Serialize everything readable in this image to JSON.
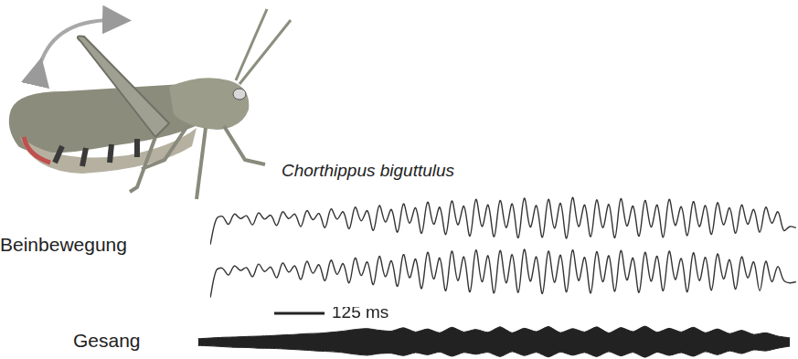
{
  "species_label": "Chorthippus biguttulus",
  "chart_data": [
    {
      "type": "line",
      "ylabel": "Beinbewegung",
      "tick_labels": false,
      "grid": false,
      "xlim": [
        0,
        1460
      ],
      "ylim": [
        0,
        10
      ],
      "y2lim": [
        0,
        10
      ],
      "x": [
        0,
        15,
        30,
        45,
        60,
        75,
        90,
        105,
        120,
        135,
        150,
        165,
        180,
        195,
        210,
        225,
        240,
        255,
        270,
        285,
        300,
        315,
        330,
        345,
        360,
        375,
        390,
        405,
        420,
        435,
        450,
        465,
        480,
        495,
        510,
        525,
        540,
        555,
        570,
        585,
        600,
        615,
        630,
        645,
        660,
        675,
        690,
        705,
        720,
        735,
        750,
        765,
        780,
        795,
        810,
        825,
        840,
        855,
        870,
        885,
        900,
        915,
        930,
        945,
        960,
        975,
        990,
        1005,
        1020,
        1035,
        1050,
        1065,
        1080,
        1095,
        1110,
        1125,
        1140,
        1155,
        1170,
        1185,
        1200,
        1215,
        1230,
        1245,
        1260,
        1275,
        1290,
        1305,
        1320,
        1335,
        1350,
        1365,
        1380,
        1395,
        1410,
        1425,
        1440,
        1455
      ],
      "series": [
        {
          "color": "#333333",
          "values": [
            1,
            5.5,
            6,
            4.6,
            6.4,
            5.6,
            6.1,
            4.5,
            6.6,
            5.5,
            6.2,
            4.4,
            6.8,
            5.6,
            6.4,
            4.2,
            7.0,
            5.4,
            6.5,
            4.0,
            7.3,
            5.5,
            6.8,
            3.8,
            7.6,
            5.2,
            7.0,
            3.5,
            7.9,
            5.0,
            7.2,
            3.2,
            8.2,
            4.8,
            7.5,
            3.0,
            8.5,
            4.6,
            7.6,
            2.8,
            8.7,
            4.5,
            7.8,
            2.5,
            9.0,
            4.2,
            8.0,
            2.4,
            8.8,
            4.0,
            8.2,
            2.2,
            9.2,
            4.1,
            7.9,
            2.3,
            9.0,
            3.9,
            8.3,
            2.1,
            9.3,
            4.2,
            8.0,
            2.4,
            8.9,
            4.0,
            8.1,
            2.2,
            9.1,
            4.3,
            7.8,
            2.5,
            8.8,
            4.1,
            8.0,
            2.3,
            9.0,
            4.4,
            7.7,
            2.6,
            8.6,
            4.2,
            7.9,
            2.8,
            8.4,
            4.5,
            7.5,
            3.0,
            8.0,
            4.6,
            7.2,
            3.2,
            7.6,
            4.8,
            6.8,
            3.5,
            4.2,
            4.0
          ]
        },
        {
          "color": "#333333",
          "axis": "y2",
          "values": [
            1,
            5.8,
            6.2,
            5.0,
            6.6,
            5.8,
            6.3,
            4.7,
            6.9,
            5.6,
            6.4,
            4.5,
            7.1,
            5.5,
            6.6,
            4.2,
            7.4,
            5.3,
            6.8,
            4.0,
            7.6,
            5.1,
            7.0,
            3.6,
            8.0,
            4.9,
            7.3,
            3.3,
            8.3,
            4.7,
            7.5,
            3.0,
            8.6,
            4.5,
            7.8,
            2.6,
            9.0,
            4.3,
            8.0,
            2.2,
            9.2,
            4.0,
            8.2,
            2.0,
            9.4,
            3.8,
            8.4,
            1.8,
            9.3,
            3.6,
            8.6,
            1.9,
            9.5,
            3.9,
            8.2,
            1.7,
            9.2,
            3.7,
            8.5,
            2.0,
            9.4,
            4.0,
            8.1,
            1.8,
            9.1,
            3.8,
            8.4,
            2.1,
            9.3,
            4.1,
            8.0,
            1.9,
            9.0,
            3.9,
            8.3,
            2.2,
            9.2,
            4.2,
            7.9,
            2.0,
            8.9,
            4.0,
            8.1,
            2.3,
            8.7,
            4.3,
            7.7,
            2.5,
            8.2,
            4.5,
            7.3,
            2.2,
            7.4,
            3.8,
            6.5,
            4.0,
            3.6,
            3.8
          ]
        }
      ]
    },
    {
      "type": "area",
      "ylabel": "Gesang",
      "tick_labels": false,
      "grid": false,
      "xlim": [
        -34,
        1460
      ],
      "ylim": [
        -10,
        10
      ],
      "scale_bar": {
        "start": 159,
        "length": 125,
        "label": "125 ms"
      },
      "x": [
        -30,
        0,
        30,
        60,
        90,
        120,
        150,
        180,
        210,
        240,
        270,
        300,
        330,
        360,
        390,
        420,
        450,
        480,
        510,
        540,
        570,
        600,
        630,
        660,
        690,
        720,
        750,
        780,
        810,
        840,
        870,
        900,
        930,
        960,
        990,
        1020,
        1050,
        1080,
        1110,
        1140,
        1170,
        1200,
        1230,
        1260,
        1290,
        1320,
        1350,
        1380,
        1410,
        1440
      ],
      "series": [
        {
          "color": "#222222",
          "values": [
            2.0,
            2.4,
            2.8,
            3.0,
            3.3,
            3.5,
            3.8,
            4.2,
            4.5,
            5.0,
            5.2,
            5.8,
            6.5,
            7.5,
            8.0,
            7.0,
            6.5,
            8.5,
            6.0,
            7.8,
            5.5,
            8.8,
            6.0,
            7.5,
            5.8,
            9.0,
            5.5,
            8.2,
            6.2,
            9.2,
            5.6,
            8.0,
            6.0,
            9.0,
            5.4,
            8.6,
            6.2,
            9.4,
            5.8,
            8.2,
            6.0,
            8.8,
            5.5,
            7.8,
            5.0,
            7.0,
            4.5,
            5.5,
            3.5,
            2.5
          ]
        },
        {
          "color": "#222222",
          "values": [
            -2.0,
            -2.3,
            -2.7,
            -3.1,
            -3.2,
            -3.6,
            -3.7,
            -4.0,
            -4.4,
            -4.8,
            -5.3,
            -5.6,
            -6.2,
            -7.2,
            -7.8,
            -6.8,
            -6.6,
            -8.0,
            -6.2,
            -7.5,
            -5.8,
            -8.4,
            -6.1,
            -7.2,
            -6.0,
            -8.6,
            -5.6,
            -8.0,
            -6.0,
            -8.8,
            -5.8,
            -7.8,
            -6.1,
            -8.6,
            -5.6,
            -8.2,
            -6.0,
            -9.0,
            -5.9,
            -7.9,
            -6.2,
            -8.4,
            -5.6,
            -7.5,
            -5.2,
            -6.8,
            -4.6,
            -5.2,
            -3.6,
            -2.4
          ]
        }
      ]
    }
  ]
}
